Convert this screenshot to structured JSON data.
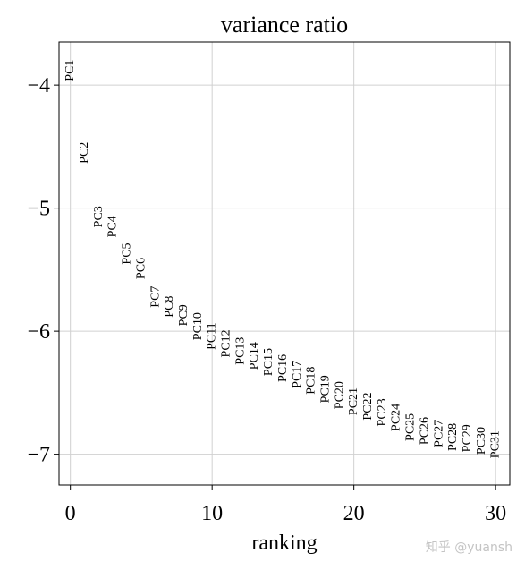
{
  "chart_data": {
    "type": "scatter",
    "title": "variance ratio",
    "xlabel": "ranking",
    "ylabel": "",
    "xlim": [
      -0.8,
      31
    ],
    "ylim": [
      -7.25,
      -3.65
    ],
    "xticks": [
      0,
      10,
      20,
      30
    ],
    "yticks": [
      -4,
      -5,
      -6,
      -7
    ],
    "xtick_labels": [
      "0",
      "10",
      "20",
      "30"
    ],
    "ytick_labels": [
      "−4",
      "−5",
      "−6",
      "−7"
    ],
    "grid": true,
    "legend": "none",
    "marker": "text-label",
    "series": [
      {
        "points": [
          {
            "label": "PC1",
            "x": 0,
            "y": -3.88
          },
          {
            "label": "PC2",
            "x": 1,
            "y": -4.55
          },
          {
            "label": "PC3",
            "x": 2,
            "y": -5.07
          },
          {
            "label": "PC4",
            "x": 3,
            "y": -5.15
          },
          {
            "label": "PC5",
            "x": 4,
            "y": -5.37
          },
          {
            "label": "PC6",
            "x": 5,
            "y": -5.49
          },
          {
            "label": "PC7",
            "x": 6,
            "y": -5.72
          },
          {
            "label": "PC8",
            "x": 7,
            "y": -5.8
          },
          {
            "label": "PC9",
            "x": 8,
            "y": -5.87
          },
          {
            "label": "PC10",
            "x": 9,
            "y": -5.96
          },
          {
            "label": "PC11",
            "x": 10,
            "y": -6.04
          },
          {
            "label": "PC12",
            "x": 11,
            "y": -6.1
          },
          {
            "label": "PC13",
            "x": 12,
            "y": -6.16
          },
          {
            "label": "PC14",
            "x": 13,
            "y": -6.2
          },
          {
            "label": "PC15",
            "x": 14,
            "y": -6.25
          },
          {
            "label": "PC16",
            "x": 15,
            "y": -6.3
          },
          {
            "label": "PC17",
            "x": 16,
            "y": -6.35
          },
          {
            "label": "PC18",
            "x": 17,
            "y": -6.4
          },
          {
            "label": "PC19",
            "x": 18,
            "y": -6.47
          },
          {
            "label": "PC20",
            "x": 19,
            "y": -6.52
          },
          {
            "label": "PC21",
            "x": 20,
            "y": -6.57
          },
          {
            "label": "PC22",
            "x": 21,
            "y": -6.61
          },
          {
            "label": "PC23",
            "x": 22,
            "y": -6.66
          },
          {
            "label": "PC24",
            "x": 23,
            "y": -6.7
          },
          {
            "label": "PC25",
            "x": 24,
            "y": -6.78
          },
          {
            "label": "PC26",
            "x": 25,
            "y": -6.81
          },
          {
            "label": "PC27",
            "x": 26,
            "y": -6.83
          },
          {
            "label": "PC28",
            "x": 27,
            "y": -6.86
          },
          {
            "label": "PC29",
            "x": 28,
            "y": -6.87
          },
          {
            "label": "PC30",
            "x": 29,
            "y": -6.89
          },
          {
            "label": "PC31",
            "x": 30,
            "y": -6.92
          }
        ]
      }
    ]
  },
  "watermark": "知乎 @yuansh",
  "colors": {
    "grid": "#d0d0d0",
    "axis": "#000000",
    "text": "#000000"
  }
}
